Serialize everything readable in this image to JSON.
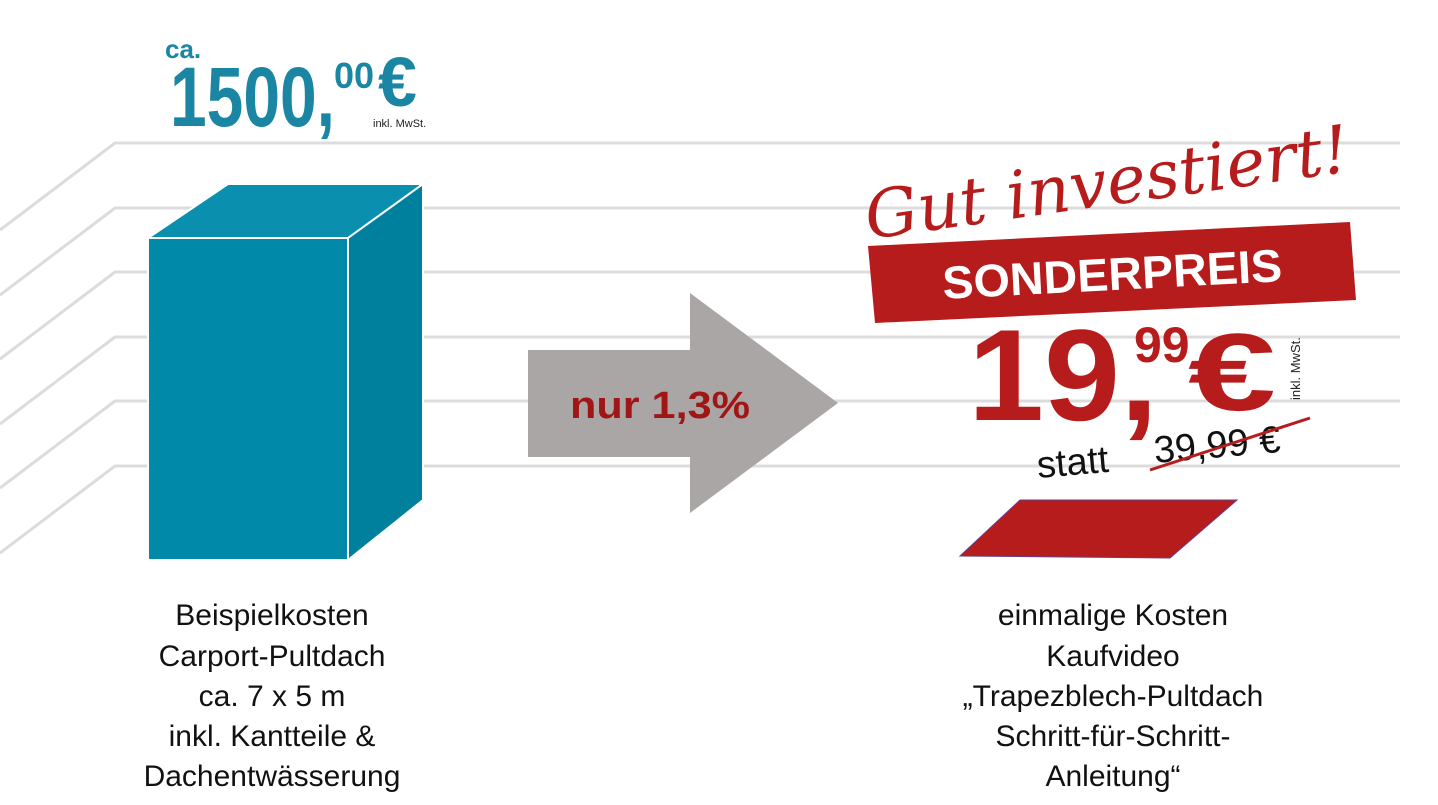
{
  "left": {
    "prefix": "ca.",
    "price_main": "1500,",
    "price_cents": "00",
    "currency": "€",
    "tax_note": "inkl. MwSt.",
    "caption": [
      "Beispielkosten",
      "Carport-Pultdach",
      "ca. 7 x 5 m",
      "inkl. Kantteile &",
      "Dachentwässerung"
    ]
  },
  "arrow": {
    "label": "nur 1,3%"
  },
  "right": {
    "slogan": "Gut investiert!",
    "badge": "SONDERPREIS",
    "price_main": "19,",
    "price_cents": "99",
    "currency": "€",
    "tax_note": "inkl. MwSt.",
    "old_prefix": "statt",
    "old_price": "39,99 €",
    "caption": [
      "einmalige Kosten",
      "Kaufvideo",
      "„Trapezblech-Pultdach",
      "Schritt-für-Schritt-",
      "Anleitung“"
    ]
  }
}
